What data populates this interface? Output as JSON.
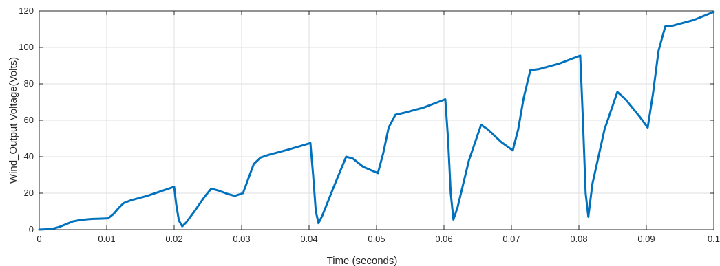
{
  "chart_data": {
    "type": "line",
    "title": "",
    "xlabel": "Time (seconds)",
    "ylabel": "Wind_Output Voltage(Volts)",
    "xlim": [
      0,
      0.1
    ],
    "ylim": [
      0,
      120
    ],
    "grid": true,
    "x_ticks": [
      0,
      0.01,
      0.02,
      0.03,
      0.04,
      0.05,
      0.06,
      0.07,
      0.08,
      0.09,
      0.1
    ],
    "x_tick_labels": [
      "0",
      "0.01",
      "0.02",
      "0.03",
      "0.04",
      "0.05",
      "0.06",
      "0.07",
      "0.08",
      "0.09",
      "0.1"
    ],
    "y_ticks": [
      0,
      20,
      40,
      60,
      80,
      100,
      120
    ],
    "y_tick_labels": [
      "0",
      "20",
      "40",
      "60",
      "80",
      "100",
      "120"
    ],
    "line_color": "#0072bd",
    "series": [
      {
        "x": [
          0,
          0.001,
          0.002,
          0.003,
          0.004,
          0.005,
          0.006,
          0.007,
          0.008,
          0.009,
          0.0102,
          0.011,
          0.0118,
          0.0125,
          0.0135,
          0.016,
          0.02,
          0.0203,
          0.0207,
          0.0212,
          0.0218,
          0.023,
          0.0245,
          0.0255,
          0.0265,
          0.028,
          0.029,
          0.0302,
          0.031,
          0.0318,
          0.0328,
          0.034,
          0.037,
          0.0402,
          0.0406,
          0.041,
          0.0414,
          0.042,
          0.0435,
          0.0455,
          0.0465,
          0.048,
          0.0502,
          0.051,
          0.0518,
          0.0528,
          0.054,
          0.057,
          0.0602,
          0.0606,
          0.061,
          0.0614,
          0.062,
          0.0637,
          0.0655,
          0.0665,
          0.0685,
          0.0702,
          0.071,
          0.0718,
          0.0728,
          0.074,
          0.077,
          0.0802,
          0.0806,
          0.081,
          0.0814,
          0.082,
          0.0838,
          0.0857,
          0.0868,
          0.089,
          0.0902,
          0.091,
          0.0918,
          0.0928,
          0.094,
          0.097,
          0.1
        ],
        "y": [
          0,
          0.2,
          0.5,
          1.5,
          3,
          4.5,
          5.2,
          5.6,
          5.9,
          6,
          6.2,
          8.5,
          12,
          14.5,
          16,
          18.5,
          23.5,
          14,
          5,
          1.8,
          4,
          10,
          18,
          22.5,
          21.5,
          19.5,
          18.5,
          20,
          28,
          36,
          39.5,
          41,
          44,
          47.5,
          30,
          10,
          3.5,
          8,
          22,
          40,
          39,
          34.5,
          31,
          42,
          56,
          63,
          64,
          67,
          71.5,
          50,
          20,
          5.5,
          12,
          38,
          57.5,
          55,
          48,
          43.5,
          55,
          72,
          87.5,
          88,
          91,
          95.5,
          60,
          20,
          7,
          25,
          55,
          75.5,
          72,
          62,
          56,
          75,
          98,
          111.5,
          112,
          115,
          119.5
        ]
      }
    ]
  }
}
